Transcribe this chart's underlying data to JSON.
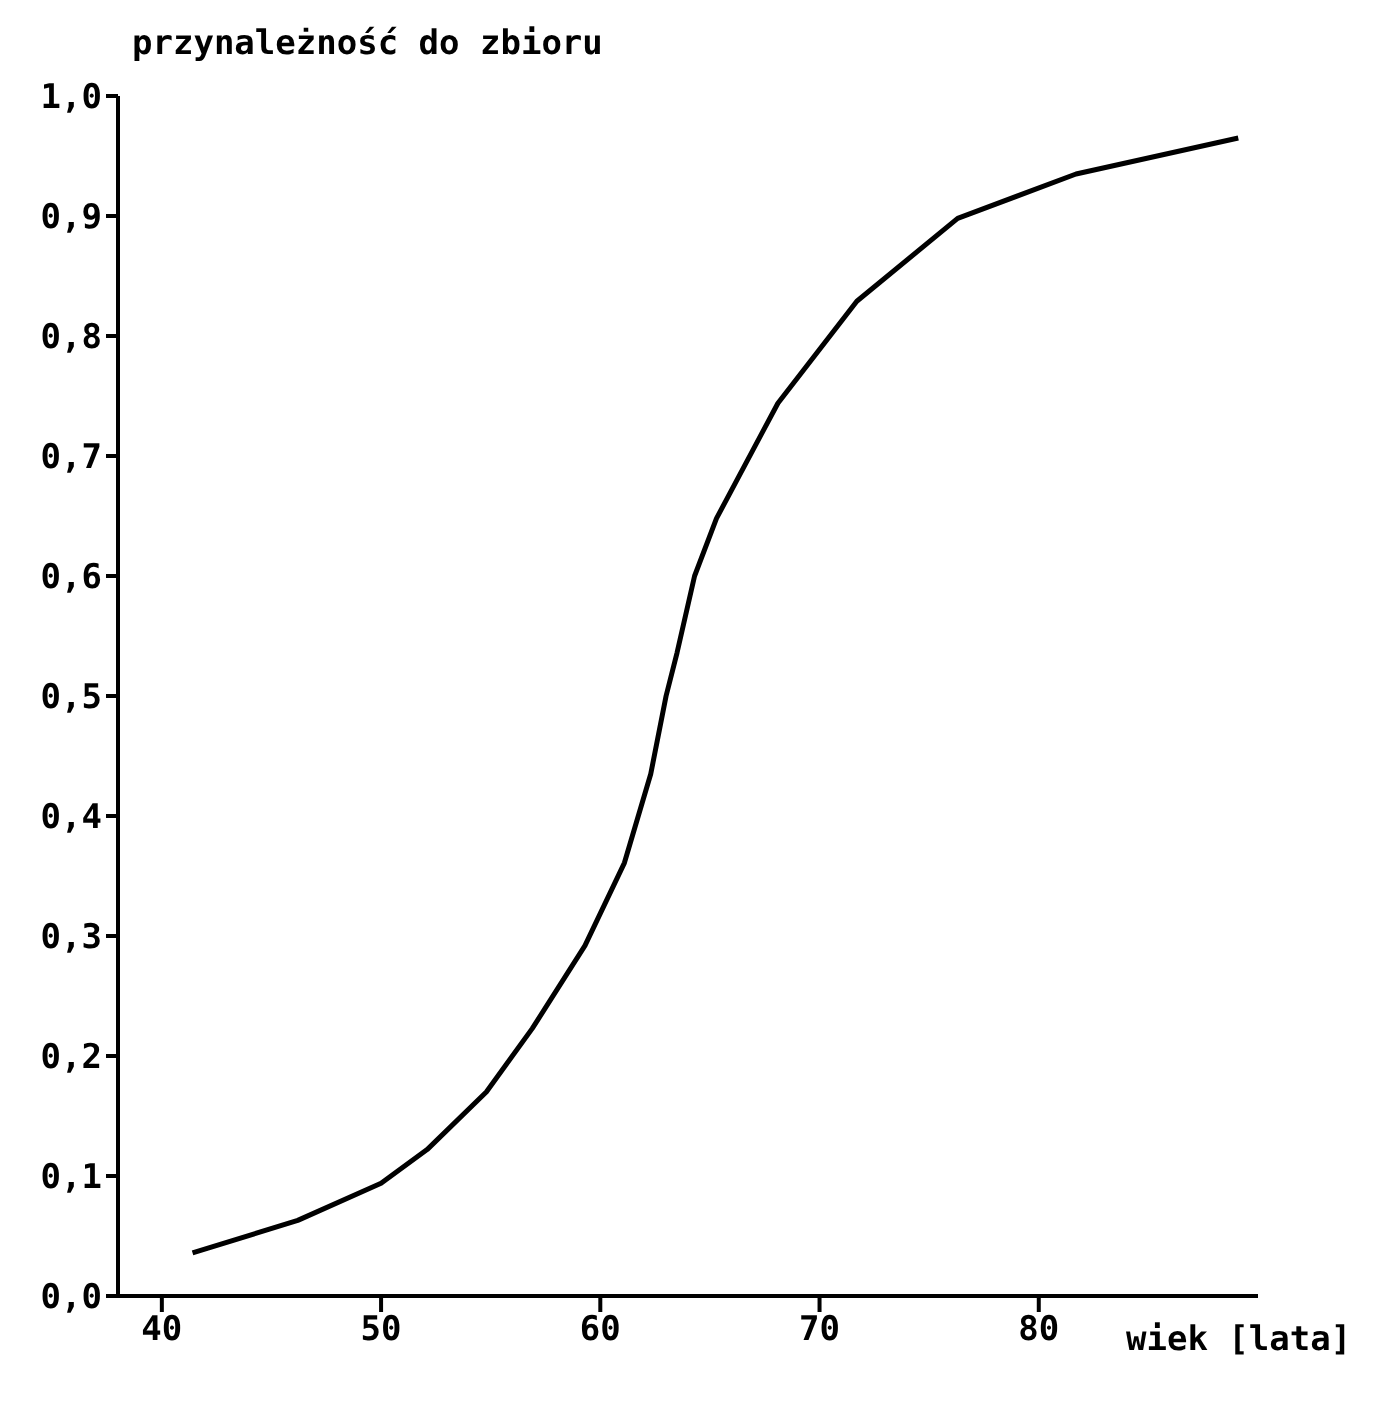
{
  "chart_data": {
    "type": "line",
    "xlabel": "wiek [lata]",
    "ylabel": "przynależność do zbioru",
    "series": [
      {
        "color": "#000000",
        "x": [
          41.4,
          46.2,
          50.0,
          52.1,
          54.8,
          56.9,
          59.3,
          61.1,
          62.3,
          63.0,
          63.5,
          64.3,
          65.3,
          68.1,
          71.7,
          76.3,
          81.7,
          89.1
        ],
        "values": [
          0.036,
          0.063,
          0.094,
          0.122,
          0.17,
          0.223,
          0.292,
          0.361,
          0.435,
          0.5,
          0.536,
          0.6,
          0.648,
          0.744,
          0.829,
          0.898,
          0.935,
          0.965
        ]
      }
    ],
    "xlim": [
      38,
      90
    ],
    "xticks": [
      40,
      50,
      60,
      70,
      80
    ],
    "ylim": [
      0,
      1
    ],
    "yticks": [
      {
        "value": 0,
        "label": "0,0"
      },
      {
        "value": 0.1,
        "label": "0,1"
      },
      {
        "value": 0.2,
        "label": "0,2"
      },
      {
        "value": 0.3,
        "label": "0,3"
      },
      {
        "value": 0.4,
        "label": "0,4"
      },
      {
        "value": 0.5,
        "label": "0,5"
      },
      {
        "value": 0.6,
        "label": "0,6"
      },
      {
        "value": 0.7,
        "label": "0,7"
      },
      {
        "value": 0.8,
        "label": "0,8"
      },
      {
        "value": 0.9,
        "label": "0,9"
      },
      {
        "value": 1,
        "label": "1,0"
      }
    ],
    "grid": false,
    "legend": false,
    "marker": "none",
    "line_style": "solid"
  }
}
